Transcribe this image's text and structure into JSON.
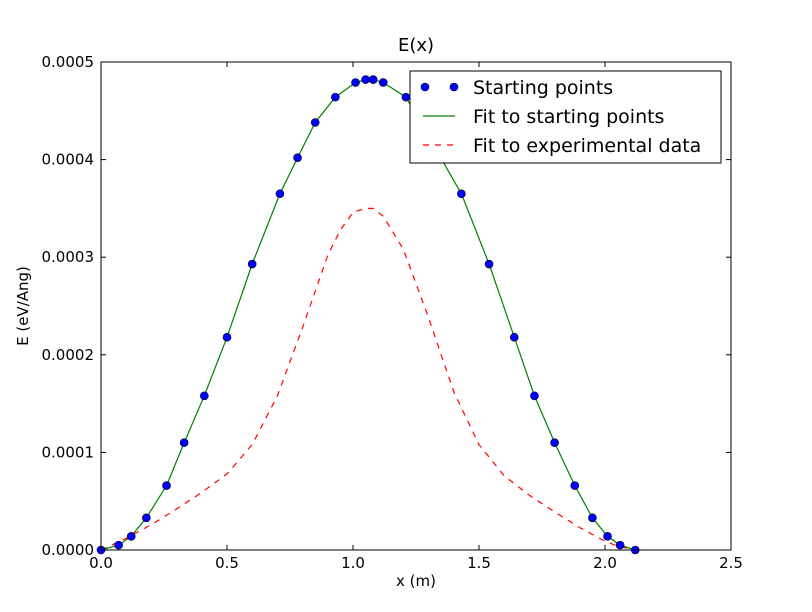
{
  "chart_data": {
    "type": "line",
    "title": "E(x)",
    "xlabel": "x (m)",
    "ylabel": "E (eV/Ang)",
    "xlim": [
      0.0,
      2.5
    ],
    "ylim": [
      0.0,
      0.0005
    ],
    "xticks": [
      "0.0",
      "0.5",
      "1.0",
      "1.5",
      "2.0",
      "2.5"
    ],
    "yticks": [
      "0.0000",
      "0.0001",
      "0.0002",
      "0.0003",
      "0.0004",
      "0.0005"
    ],
    "grid": false,
    "legend_position": "top-right",
    "series": [
      {
        "name": "Starting points",
        "style": "markers",
        "color": "#0000ff",
        "x": [
          0.0,
          0.07,
          0.12,
          0.18,
          0.26,
          0.33,
          0.41,
          0.5,
          0.6,
          0.71,
          0.78,
          0.85,
          0.93,
          1.01,
          1.05,
          1.08,
          1.12,
          1.21,
          1.43,
          1.54,
          1.64,
          1.72,
          1.8,
          1.88,
          1.95,
          2.01,
          2.06,
          2.12
        ],
        "y": [
          0.0,
          5e-06,
          1.4e-05,
          3.3e-05,
          6.6e-05,
          0.00011,
          0.000158,
          0.000218,
          0.000293,
          0.000365,
          0.000402,
          0.000438,
          0.000464,
          0.000479,
          0.000482,
          0.000482,
          0.000479,
          0.000464,
          0.000365,
          0.000293,
          0.000218,
          0.000158,
          0.00011,
          6.6e-05,
          3.3e-05,
          1.4e-05,
          5e-06,
          0.0
        ]
      },
      {
        "name": "Fit to starting points",
        "style": "solid",
        "color": "#008000",
        "x": [
          0.0,
          0.07,
          0.12,
          0.18,
          0.26,
          0.33,
          0.41,
          0.5,
          0.6,
          0.71,
          0.78,
          0.85,
          0.93,
          1.01,
          1.05,
          1.08,
          1.12,
          1.21,
          1.43,
          1.54,
          1.64,
          1.72,
          1.8,
          1.88,
          1.95,
          2.01,
          2.06,
          2.12
        ],
        "y": [
          0.0,
          5e-06,
          1.4e-05,
          3.3e-05,
          6.6e-05,
          0.00011,
          0.000158,
          0.000218,
          0.000293,
          0.000365,
          0.000402,
          0.000438,
          0.000464,
          0.000479,
          0.000482,
          0.000482,
          0.000479,
          0.000464,
          0.000365,
          0.000293,
          0.000218,
          0.000158,
          0.00011,
          6.6e-05,
          3.3e-05,
          1.4e-05,
          5e-06,
          0.0
        ]
      },
      {
        "name": "Fit to experimental data",
        "style": "dashed",
        "color": "#ff0000",
        "x": [
          0.0,
          0.1,
          0.2,
          0.3,
          0.4,
          0.5,
          0.6,
          0.7,
          0.8,
          0.9,
          0.95,
          1.0,
          1.05,
          1.08,
          1.12,
          1.2,
          1.3,
          1.4,
          1.5,
          1.6,
          1.7,
          1.8,
          1.9,
          2.0,
          2.05,
          2.12
        ],
        "y": [
          0.0,
          1.2e-05,
          2.6e-05,
          4.2e-05,
          5.9e-05,
          7.8e-05,
          0.000108,
          0.000158,
          0.000228,
          0.000302,
          0.000328,
          0.000346,
          0.00035,
          0.00035,
          0.000342,
          0.000308,
          0.000238,
          0.000162,
          0.000108,
          7.6e-05,
          5.6e-05,
          3.9e-05,
          2.3e-05,
          9e-06,
          4e-06,
          0.0
        ]
      }
    ]
  }
}
